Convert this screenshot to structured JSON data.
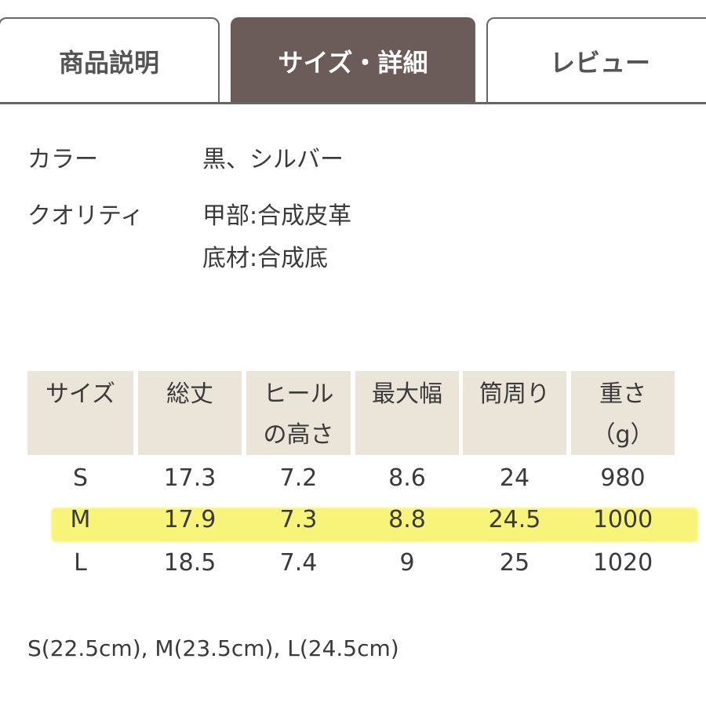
{
  "tabs": [
    {
      "label": "商品説明",
      "active": false
    },
    {
      "label": "サイズ・詳細",
      "active": true
    },
    {
      "label": "レビュー",
      "active": false
    }
  ],
  "details": [
    {
      "label": "カラー",
      "values": [
        "黒、シルバー"
      ]
    },
    {
      "label": "クオリティ",
      "values": [
        "甲部:合成皮革",
        "底材:合成底"
      ]
    }
  ],
  "table": {
    "headers": [
      [
        "サイズ",
        ""
      ],
      [
        "総丈",
        ""
      ],
      [
        "ヒール",
        "の高さ"
      ],
      [
        "最大幅",
        ""
      ],
      [
        "筒周り",
        ""
      ],
      [
        "重さ",
        "（g）"
      ]
    ],
    "rows": [
      [
        "S",
        "17.3",
        "7.2",
        "8.6",
        "24",
        "980"
      ],
      [
        "M",
        "17.9",
        "7.3",
        "8.8",
        "24.5",
        "1000"
      ],
      [
        "L",
        "18.5",
        "7.4",
        "9",
        "25",
        "1020"
      ]
    ],
    "highlighted_row": "M"
  },
  "footnote": "S(22.5cm), M(23.5cm), L(24.5cm)",
  "colors": {
    "active_tab": "#6b5c59",
    "header_bg": "#ebe4d9",
    "highlight": "#f8f47a"
  }
}
